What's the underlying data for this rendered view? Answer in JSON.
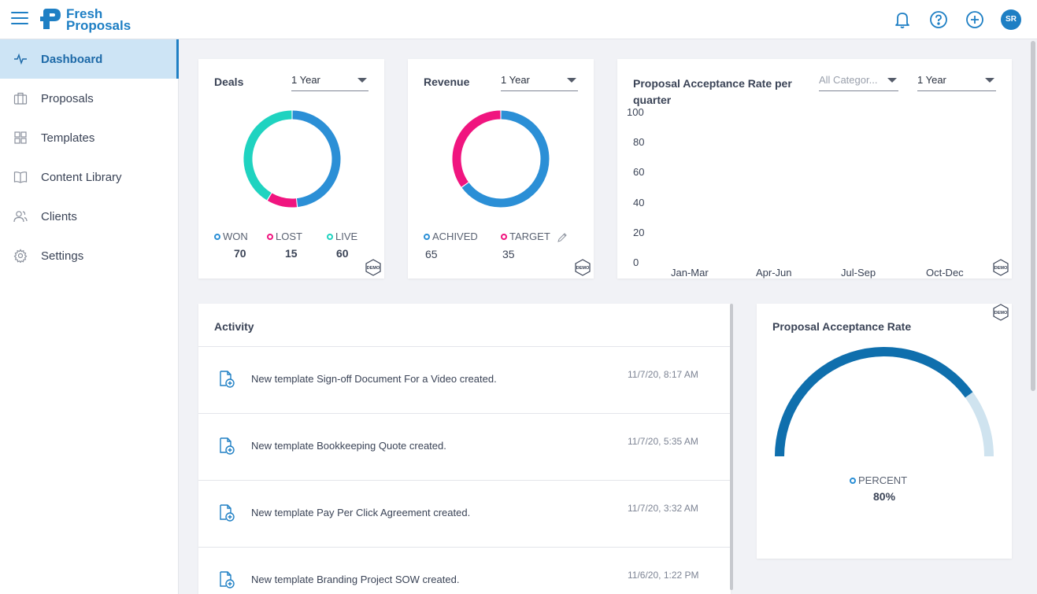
{
  "app": {
    "logo_line1": "Fresh",
    "logo_line2": "Proposals",
    "avatar_initials": "SR",
    "brand_color": "#1e7fc4"
  },
  "topbar": {
    "icons": [
      "bell-icon",
      "help-icon",
      "add-icon"
    ]
  },
  "sidebar": {
    "items": [
      {
        "label": "Dashboard",
        "icon": "pulse-icon",
        "active": true
      },
      {
        "label": "Proposals",
        "icon": "briefcase-icon"
      },
      {
        "label": "Templates",
        "icon": "grid-icon"
      },
      {
        "label": "Content Library",
        "icon": "book-icon"
      },
      {
        "label": "Clients",
        "icon": "users-icon"
      },
      {
        "label": "Settings",
        "icon": "gear-icon"
      }
    ]
  },
  "deals": {
    "title": "Deals",
    "period": "1 Year",
    "legend": [
      {
        "label": "WON",
        "value": "70",
        "color": "#2b8fd6"
      },
      {
        "label": "LOST",
        "value": "15",
        "color": "#f0157f"
      },
      {
        "label": "LIVE",
        "value": "60",
        "color": "#1fd3c0"
      }
    ],
    "demo": "DEMO"
  },
  "revenue": {
    "title": "Revenue",
    "period": "1 Year",
    "legend": [
      {
        "label": "ACHIVED",
        "value": "65",
        "color": "#2b8fd6"
      },
      {
        "label": "TARGET",
        "value": "35",
        "color": "#f0157f"
      }
    ],
    "demo": "DEMO"
  },
  "acceptance_quarter": {
    "title_line1": "Proposal Acceptance Rate per",
    "title_line2": "quarter",
    "category": "All Categor...",
    "period": "1 Year",
    "demo": "DEMO"
  },
  "activity": {
    "title": "Activity",
    "items": [
      {
        "text": "New template Sign-off Document For a Video created.",
        "time": "11/7/20, 8:17 AM"
      },
      {
        "text": "New template Bookkeeping Quote created.",
        "time": "11/7/20, 5:35 AM"
      },
      {
        "text": "New template Pay Per Click Agreement created.",
        "time": "11/7/20, 3:32 AM"
      },
      {
        "text": "New template Branding Project SOW created.",
        "time": "11/6/20, 1:22 PM"
      }
    ]
  },
  "acceptance_rate": {
    "title": "Proposal Acceptance Rate",
    "legend_label": "PERCENT",
    "value_text": "80%",
    "value": 80,
    "demo": "DEMO"
  },
  "chart_data": [
    {
      "type": "pie",
      "title": "Deals",
      "categories": [
        "WON",
        "LOST",
        "LIVE"
      ],
      "values": [
        70,
        15,
        60
      ],
      "colors": [
        "#2b8fd6",
        "#f0157f",
        "#1fd3c0"
      ]
    },
    {
      "type": "pie",
      "title": "Revenue",
      "categories": [
        "ACHIVED",
        "TARGET"
      ],
      "values": [
        65,
        35
      ],
      "colors": [
        "#2b8fd6",
        "#f0157f"
      ]
    },
    {
      "type": "bar",
      "title": "Proposal Acceptance Rate per quarter",
      "categories": [
        "Jan-Mar",
        "Apr-Jun",
        "Jul-Sep",
        "Oct-Dec"
      ],
      "values": [
        0,
        0,
        0,
        0
      ],
      "yticks": [
        "100",
        "80",
        "60",
        "40",
        "20",
        "0"
      ],
      "ylim": [
        0,
        100
      ]
    },
    {
      "type": "gauge",
      "title": "Proposal Acceptance Rate",
      "categories": [
        "PERCENT"
      ],
      "values": [
        80
      ],
      "ylim": [
        0,
        100
      ]
    }
  ]
}
